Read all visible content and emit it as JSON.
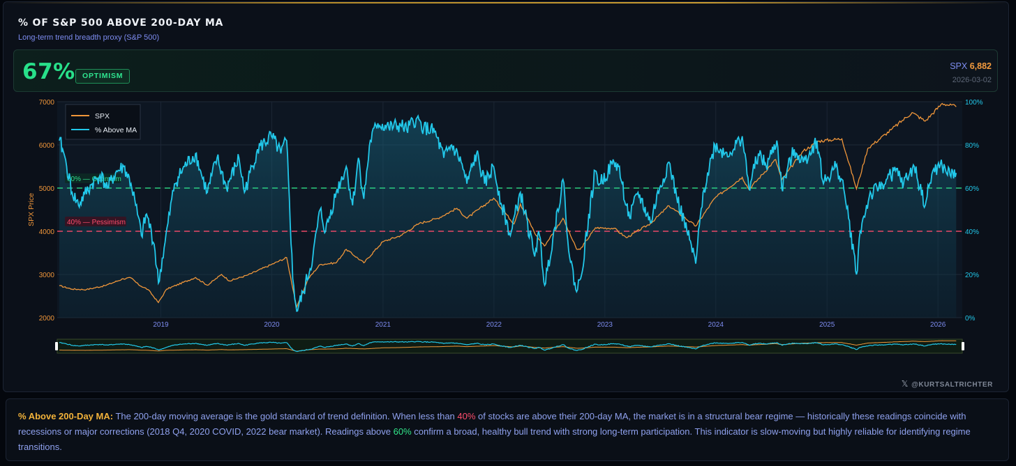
{
  "header": {
    "title": "% OF S&P 500 ABOVE 200-DAY MA",
    "subtitle": "Long-term trend breadth proxy (S&P 500)"
  },
  "stat": {
    "value": "67%",
    "regime": "OPTIMISM",
    "spx_label": "SPX",
    "spx_value": "6,882",
    "date": "2026-03-02"
  },
  "colors": {
    "spx": "#f0963a",
    "breadth": "#22c8ea",
    "optimism": "#2ee08a",
    "pessimism": "#ff4d6d",
    "panel": "#0b1019"
  },
  "chart_data": {
    "type": "line",
    "x_ticks": [
      "2019",
      "2020",
      "2021",
      "2022",
      "2023",
      "2024",
      "2025",
      "2026"
    ],
    "left_axis": {
      "label": "SPX Price",
      "ticks": [
        2000,
        3000,
        4000,
        5000,
        6000,
        7000
      ],
      "range": [
        2000,
        7000
      ]
    },
    "right_axis": {
      "ticks": [
        "0%",
        "20%",
        "40%",
        "60%",
        "80%",
        "100%"
      ],
      "range": [
        0,
        100
      ]
    },
    "legend": {
      "position": "top-left",
      "items": [
        "SPX",
        "% Above MA"
      ]
    },
    "reference_lines": [
      {
        "label": "60% — Optimism",
        "value": 60
      },
      {
        "label": "40% — Pessimism",
        "value": 40
      }
    ],
    "series": [
      {
        "name": "SPX",
        "axis": "left",
        "points": [
          [
            "2018-02-01",
            2740
          ],
          [
            "2018-03-15",
            2660
          ],
          [
            "2018-05-01",
            2650
          ],
          [
            "2018-07-01",
            2740
          ],
          [
            "2018-08-30",
            2900
          ],
          [
            "2018-09-25",
            2920
          ],
          [
            "2018-10-20",
            2760
          ],
          [
            "2018-11-20",
            2650
          ],
          [
            "2018-12-24",
            2350
          ],
          [
            "2019-01-20",
            2660
          ],
          [
            "2019-04-25",
            2930
          ],
          [
            "2019-06-03",
            2750
          ],
          [
            "2019-07-20",
            3000
          ],
          [
            "2019-08-15",
            2850
          ],
          [
            "2019-10-15",
            2990
          ],
          [
            "2019-12-31",
            3230
          ],
          [
            "2020-02-19",
            3390
          ],
          [
            "2020-03-23",
            2240
          ],
          [
            "2020-04-30",
            2900
          ],
          [
            "2020-06-08",
            3230
          ],
          [
            "2020-07-31",
            3270
          ],
          [
            "2020-09-02",
            3580
          ],
          [
            "2020-10-30",
            3270
          ],
          [
            "2020-12-31",
            3756
          ],
          [
            "2021-02-28",
            3900
          ],
          [
            "2021-04-30",
            4180
          ],
          [
            "2021-06-30",
            4300
          ],
          [
            "2021-09-01",
            4530
          ],
          [
            "2021-10-04",
            4300
          ],
          [
            "2021-12-31",
            4766
          ],
          [
            "2022-03-08",
            4170
          ],
          [
            "2022-03-29",
            4630
          ],
          [
            "2022-05-20",
            3900
          ],
          [
            "2022-06-16",
            3660
          ],
          [
            "2022-08-16",
            4300
          ],
          [
            "2022-09-30",
            3585
          ],
          [
            "2022-10-12",
            3580
          ],
          [
            "2022-12-01",
            4080
          ],
          [
            "2023-01-31",
            4070
          ],
          [
            "2023-03-13",
            3850
          ],
          [
            "2023-05-31",
            4180
          ],
          [
            "2023-07-31",
            4590
          ],
          [
            "2023-10-27",
            4120
          ],
          [
            "2023-12-29",
            4770
          ],
          [
            "2024-03-28",
            5250
          ],
          [
            "2024-04-19",
            4970
          ],
          [
            "2024-07-16",
            5660
          ],
          [
            "2024-08-05",
            5190
          ],
          [
            "2024-10-15",
            5860
          ],
          [
            "2024-12-06",
            6090
          ],
          [
            "2025-02-19",
            6140
          ],
          [
            "2025-04-08",
            4980
          ],
          [
            "2025-05-15",
            5920
          ],
          [
            "2025-07-31",
            6350
          ],
          [
            "2025-10-08",
            6750
          ],
          [
            "2025-11-20",
            6550
          ],
          [
            "2026-01-15",
            6960
          ],
          [
            "2026-03-02",
            6882
          ]
        ]
      },
      {
        "name": "% Above MA",
        "axis": "right",
        "points": [
          [
            "2018-02-01",
            82
          ],
          [
            "2018-02-12",
            78
          ],
          [
            "2018-02-25",
            70
          ],
          [
            "2018-03-15",
            58
          ],
          [
            "2018-04-05",
            52
          ],
          [
            "2018-04-25",
            57
          ],
          [
            "2018-05-20",
            62
          ],
          [
            "2018-06-15",
            66
          ],
          [
            "2018-07-10",
            60
          ],
          [
            "2018-08-05",
            67
          ],
          [
            "2018-09-01",
            70
          ],
          [
            "2018-09-25",
            62
          ],
          [
            "2018-10-10",
            52
          ],
          [
            "2018-10-29",
            38
          ],
          [
            "2018-11-15",
            48
          ],
          [
            "2018-12-10",
            34
          ],
          [
            "2018-12-24",
            16
          ],
          [
            "2019-01-15",
            35
          ],
          [
            "2019-02-15",
            62
          ],
          [
            "2019-03-20",
            70
          ],
          [
            "2019-04-25",
            76
          ],
          [
            "2019-05-15",
            66
          ],
          [
            "2019-06-03",
            58
          ],
          [
            "2019-07-05",
            74
          ],
          [
            "2019-08-05",
            60
          ],
          [
            "2019-09-15",
            74
          ],
          [
            "2019-10-03",
            58
          ],
          [
            "2019-11-15",
            78
          ],
          [
            "2019-12-31",
            84
          ],
          [
            "2020-01-31",
            76
          ],
          [
            "2020-02-19",
            82
          ],
          [
            "2020-02-28",
            55
          ],
          [
            "2020-03-10",
            18
          ],
          [
            "2020-03-23",
            3
          ],
          [
            "2020-04-15",
            12
          ],
          [
            "2020-05-15",
            28
          ],
          [
            "2020-06-08",
            50
          ],
          [
            "2020-06-26",
            40
          ],
          [
            "2020-07-31",
            58
          ],
          [
            "2020-09-02",
            70
          ],
          [
            "2020-09-23",
            52
          ],
          [
            "2020-10-12",
            74
          ],
          [
            "2020-10-30",
            55
          ],
          [
            "2020-11-20",
            82
          ],
          [
            "2020-12-15",
            90
          ],
          [
            "2021-01-20",
            88
          ],
          [
            "2021-02-28",
            89
          ],
          [
            "2021-03-20",
            87
          ],
          [
            "2021-04-20",
            92
          ],
          [
            "2021-05-15",
            88
          ],
          [
            "2021-06-20",
            86
          ],
          [
            "2021-07-20",
            74
          ],
          [
            "2021-08-15",
            80
          ],
          [
            "2021-09-15",
            72
          ],
          [
            "2021-10-04",
            62
          ],
          [
            "2021-11-05",
            76
          ],
          [
            "2021-12-01",
            62
          ],
          [
            "2021-12-31",
            70
          ],
          [
            "2022-01-27",
            52
          ],
          [
            "2022-02-24",
            38
          ],
          [
            "2022-03-29",
            58
          ],
          [
            "2022-05-12",
            30
          ],
          [
            "2022-05-31",
            38
          ],
          [
            "2022-06-17",
            15
          ],
          [
            "2022-08-16",
            64
          ],
          [
            "2022-09-07",
            28
          ],
          [
            "2022-09-30",
            12
          ],
          [
            "2022-10-13",
            18
          ],
          [
            "2022-11-30",
            68
          ],
          [
            "2022-12-15",
            62
          ],
          [
            "2023-01-31",
            72
          ],
          [
            "2023-02-15",
            70
          ],
          [
            "2023-03-13",
            52
          ],
          [
            "2023-03-24",
            46
          ],
          [
            "2023-04-20",
            58
          ],
          [
            "2023-05-31",
            44
          ],
          [
            "2023-06-30",
            60
          ],
          [
            "2023-07-31",
            72
          ],
          [
            "2023-08-25",
            56
          ],
          [
            "2023-09-28",
            40
          ],
          [
            "2023-10-27",
            25
          ],
          [
            "2023-11-20",
            58
          ],
          [
            "2023-12-29",
            80
          ],
          [
            "2024-01-31",
            76
          ],
          [
            "2024-02-29",
            78
          ],
          [
            "2024-03-28",
            84
          ],
          [
            "2024-04-19",
            60
          ],
          [
            "2024-05-20",
            76
          ],
          [
            "2024-06-15",
            70
          ],
          [
            "2024-07-20",
            82
          ],
          [
            "2024-08-05",
            60
          ],
          [
            "2024-09-15",
            78
          ],
          [
            "2024-10-15",
            72
          ],
          [
            "2024-11-29",
            82
          ],
          [
            "2024-12-20",
            62
          ],
          [
            "2025-01-30",
            70
          ],
          [
            "2025-02-19",
            64
          ],
          [
            "2025-03-13",
            46
          ],
          [
            "2025-04-08",
            20
          ],
          [
            "2025-04-20",
            40
          ],
          [
            "2025-05-20",
            56
          ],
          [
            "2025-06-20",
            60
          ],
          [
            "2025-07-15",
            64
          ],
          [
            "2025-08-15",
            68
          ],
          [
            "2025-09-10",
            62
          ],
          [
            "2025-10-15",
            70
          ],
          [
            "2025-11-20",
            52
          ],
          [
            "2025-12-15",
            68
          ],
          [
            "2026-01-15",
            70
          ],
          [
            "2026-02-10",
            66
          ],
          [
            "2026-03-02",
            67
          ]
        ]
      }
    ]
  },
  "watermark": {
    "x_glyph": "𝕏",
    "handle": "@KURTSALTRICHTER"
  },
  "footer": {
    "lead": "% Above 200-Day MA:",
    "text1": " The 200-day moving average is the gold standard of trend definition. When less than ",
    "pct40": "40%",
    "text2": " of stocks are above their 200-day MA, the market is in a structural bear regime — historically these readings coincide with recessions or major corrections (2018 Q4, 2020 COVID, 2022 bear market). Readings above ",
    "pct60": "60%",
    "text3": " confirm a broad, healthy bull trend with strong long-term participation. This indicator is slow-moving but highly reliable for identifying regime transitions."
  }
}
